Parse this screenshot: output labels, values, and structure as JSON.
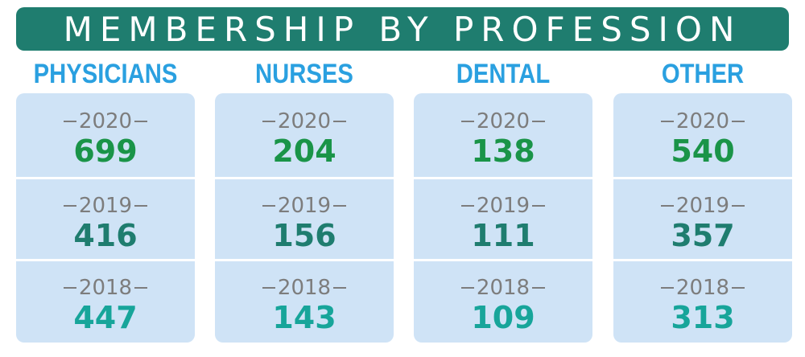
{
  "title": "MEMBERSHIP BY PROFESSION",
  "colors": {
    "banner": "#1f7d6f",
    "header_text": "#2aa0e0",
    "card": "#cfe3f6",
    "year_text": "#7d7d7d",
    "value_2020": "#1a9448",
    "value_2019": "#1f7d6f",
    "value_2018": "#17a59a"
  },
  "chart_data": {
    "type": "table",
    "title": "MEMBERSHIP BY PROFESSION",
    "categories": [
      "PHYSICIANS",
      "NURSES",
      "DENTAL",
      "OTHER"
    ],
    "years": [
      "2020",
      "2019",
      "2018"
    ],
    "series": [
      {
        "name": "2020",
        "values": [
          699,
          204,
          138,
          540
        ]
      },
      {
        "name": "2019",
        "values": [
          416,
          156,
          111,
          357
        ]
      },
      {
        "name": "2018",
        "values": [
          447,
          143,
          109,
          313
        ]
      }
    ]
  }
}
